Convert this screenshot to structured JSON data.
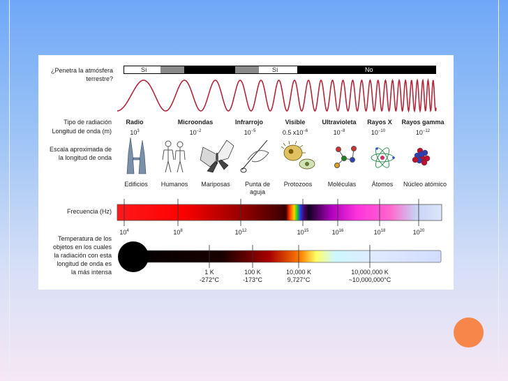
{
  "atmosphere": {
    "question": [
      "¿Penetra la atmósfera",
      "terrestre?"
    ],
    "segments": [
      "Sí",
      "No",
      "Sí",
      "No"
    ]
  },
  "rows": {
    "tipo": "Tipo de radiación",
    "longitud": "Longitud de onda (m)",
    "escala": [
      "Escala aproximada de",
      "la longitud de onda"
    ],
    "frecuencia": "Frecuencia (Hz)",
    "temperatura": [
      "Temperatura de los",
      "objetos en los cuales",
      "la radiación con esta",
      "longitud de onda es",
      "la más intensa"
    ]
  },
  "radiation": [
    {
      "name": "Radio",
      "base": "10",
      "exp": "3"
    },
    {
      "name": "Microondas",
      "base": "10",
      "exp": "−2"
    },
    {
      "name": "Infrarrojo",
      "base": "10",
      "exp": "−5"
    },
    {
      "name": "Visible",
      "base": "0.5 x10",
      "exp": "−6"
    },
    {
      "name": "Ultravioleta",
      "base": "10",
      "exp": "−8"
    },
    {
      "name": "Rayos X",
      "base": "10",
      "exp": "−10"
    },
    {
      "name": "Rayos gamma",
      "base": "10",
      "exp": "−12"
    }
  ],
  "scale_objects": [
    "Edificios",
    "Humanos",
    "Mariposas",
    "Punta de aguja",
    "Protozoos",
    "Moléculas",
    "Átomos",
    "Núcleo atómico"
  ],
  "frequency": [
    {
      "base": "10",
      "exp": "4"
    },
    {
      "base": "10",
      "exp": "8"
    },
    {
      "base": "10",
      "exp": "12"
    },
    {
      "base": "10",
      "exp": "15"
    },
    {
      "base": "10",
      "exp": "16"
    },
    {
      "base": "10",
      "exp": "18"
    },
    {
      "base": "10",
      "exp": "20"
    }
  ],
  "temperatures": [
    {
      "k": "1 K",
      "c": "-272°C"
    },
    {
      "k": "100 K",
      "c": "-173°C"
    },
    {
      "k": "10,000 K",
      "c": "9,727°C"
    },
    {
      "k": "10,000,000 K",
      "c": "~10,000,000°C"
    }
  ],
  "icons": [
    "buildings-icon",
    "humans-icon",
    "butterfly-icon",
    "needle-icon",
    "protozoa-icon",
    "molecule-icon",
    "atom-icon",
    "nucleus-icon"
  ]
}
